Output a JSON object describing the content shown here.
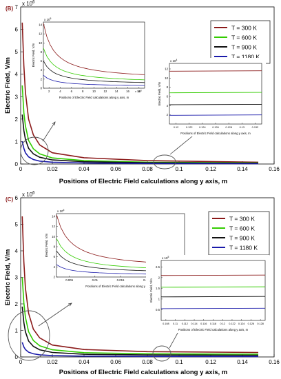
{
  "chart_data": [
    {
      "type": "line",
      "panel_label": "(B)",
      "xlabel": "Positions of Electric Field calculations along y axis, m",
      "ylabel": "Electric Field, V/m",
      "y_exponent": "x 10^6",
      "xlim": [
        0,
        0.16
      ],
      "ylim": [
        0,
        7
      ],
      "xticks": [
        "0",
        "0.02",
        "0.04",
        "0.06",
        "0.08",
        "0.1",
        "0.12",
        "0.14",
        "0.16"
      ],
      "yticks": [
        "0",
        "1",
        "2",
        "3",
        "4",
        "5",
        "6",
        "7"
      ],
      "legend_position": "top-right",
      "series": [
        {
          "name": "T = 300 K",
          "color": "#8B1A1A",
          "x": [
            0.001,
            0.002,
            0.003,
            0.005,
            0.008,
            0.012,
            0.02,
            0.04,
            0.08,
            0.15
          ],
          "y": [
            6.3,
            4.4,
            3.2,
            2.0,
            1.3,
            0.85,
            0.5,
            0.28,
            0.15,
            0.08
          ]
        },
        {
          "name": "T = 600 K",
          "color": "#33cc00",
          "x": [
            0.001,
            0.002,
            0.003,
            0.005,
            0.008,
            0.012,
            0.02,
            0.04,
            0.08,
            0.15
          ],
          "y": [
            3.5,
            2.3,
            1.7,
            1.05,
            0.68,
            0.45,
            0.27,
            0.15,
            0.08,
            0.05
          ]
        },
        {
          "name": "T = 900 K",
          "color": "#111111",
          "x": [
            0.001,
            0.002,
            0.003,
            0.005,
            0.008,
            0.012,
            0.02,
            0.04,
            0.08,
            0.15
          ],
          "y": [
            2.2,
            1.5,
            1.1,
            0.7,
            0.45,
            0.3,
            0.18,
            0.1,
            0.055,
            0.035
          ]
        },
        {
          "name": "T = 1180 K",
          "color": "#1a1aaa",
          "x": [
            0.001,
            0.002,
            0.003,
            0.005,
            0.008,
            0.012,
            0.02,
            0.04,
            0.08,
            0.15
          ],
          "y": [
            1.0,
            0.7,
            0.5,
            0.32,
            0.2,
            0.13,
            0.08,
            0.045,
            0.025,
            0.015
          ]
        }
      ],
      "inset_left": {
        "xlabel": "Positions of Electric Field calculations along y axis, m",
        "ylabel": "Electric Field, V/m",
        "exponent": "x 10^5",
        "xticks": [
          "2",
          "4",
          "6",
          "8",
          "10",
          "12",
          "14",
          "16",
          "18"
        ],
        "xtick_exponent": "x 10^-3",
        "yticks": [
          "0",
          "2",
          "4",
          "6",
          "8",
          "10",
          "12",
          "14"
        ]
      },
      "inset_right": {
        "xlabel": "Positions of Electric Field calculations along y axis, m",
        "ylabel": "Electric Field, V/m",
        "exponent": "x 10^4",
        "xticks": [
          "0.12",
          "0.122",
          "0.124",
          "0.126",
          "0.128",
          "0.13",
          "0.132"
        ],
        "yticks": [
          "2",
          "4",
          "6",
          "8",
          "10",
          "12"
        ],
        "levels": [
          11.5,
          6.8,
          4.2,
          1.9
        ]
      }
    },
    {
      "type": "line",
      "panel_label": "(C)",
      "xlabel": "Positions of Electric Field calculations along y axis, m",
      "ylabel": "Electric Field, V/m",
      "y_exponent": "x 10^6",
      "xlim": [
        0,
        0.16
      ],
      "ylim": [
        0,
        6
      ],
      "xticks": [
        "0",
        "0.02",
        "0.04",
        "0.06",
        "0.08",
        "0.1",
        "0.12",
        "0.14",
        "0.16"
      ],
      "yticks": [
        "0",
        "1",
        "2",
        "3",
        "4",
        "5",
        "6"
      ],
      "legend_position": "top-right",
      "series": [
        {
          "name": "T = 300 K",
          "color": "#8B1A1A",
          "x": [
            0.001,
            0.002,
            0.003,
            0.005,
            0.008,
            0.012,
            0.02,
            0.04,
            0.08,
            0.15
          ],
          "y": [
            5.3,
            3.6,
            2.6,
            1.65,
            1.05,
            0.72,
            0.45,
            0.28,
            0.2,
            0.17
          ]
        },
        {
          "name": "T = 600 K",
          "color": "#33cc00",
          "x": [
            0.001,
            0.002,
            0.003,
            0.005,
            0.008,
            0.012,
            0.02,
            0.04,
            0.08,
            0.15
          ],
          "y": [
            3.0,
            2.05,
            1.5,
            0.95,
            0.62,
            0.42,
            0.27,
            0.16,
            0.12,
            0.1
          ]
        },
        {
          "name": "T = 900 K",
          "color": "#111111",
          "x": [
            0.001,
            0.002,
            0.003,
            0.005,
            0.008,
            0.012,
            0.02,
            0.04,
            0.08,
            0.15
          ],
          "y": [
            1.9,
            1.3,
            0.95,
            0.6,
            0.4,
            0.27,
            0.17,
            0.1,
            0.075,
            0.065
          ]
        },
        {
          "name": "T = 1180 K",
          "color": "#1a1aaa",
          "x": [
            0.001,
            0.002,
            0.003,
            0.005,
            0.008,
            0.012,
            0.02,
            0.04,
            0.08,
            0.15
          ],
          "y": [
            0.55,
            0.38,
            0.28,
            0.18,
            0.12,
            0.08,
            0.05,
            0.03,
            0.022,
            0.018
          ]
        }
      ],
      "inset_left": {
        "xlabel": "Positions of Electric Field calculations along y axis, m",
        "ylabel": "Electric Field, V/m",
        "exponent": "x 10^5",
        "xticks": [
          "0.005",
          "0.01",
          "0.015",
          "0.02",
          "0.025"
        ],
        "yticks": [
          "2",
          "4",
          "6",
          "8",
          "10",
          "12",
          "14"
        ]
      },
      "inset_right": {
        "xlabel": "Positions of Electric Field calculations along y axis, m",
        "ylabel": "Electric Field, V/m",
        "exponent": "x 10^5",
        "xticks": [
          "0.108",
          "0.11",
          "0.112",
          "0.114",
          "0.116",
          "0.118",
          "0.12",
          "0.122",
          "0.124",
          "0.126",
          "0.128"
        ],
        "yticks": [
          "0.5",
          "1",
          "1.5",
          "2",
          "2.5"
        ],
        "levels": [
          2.1,
          1.55,
          1.1,
          0.55
        ]
      }
    }
  ]
}
